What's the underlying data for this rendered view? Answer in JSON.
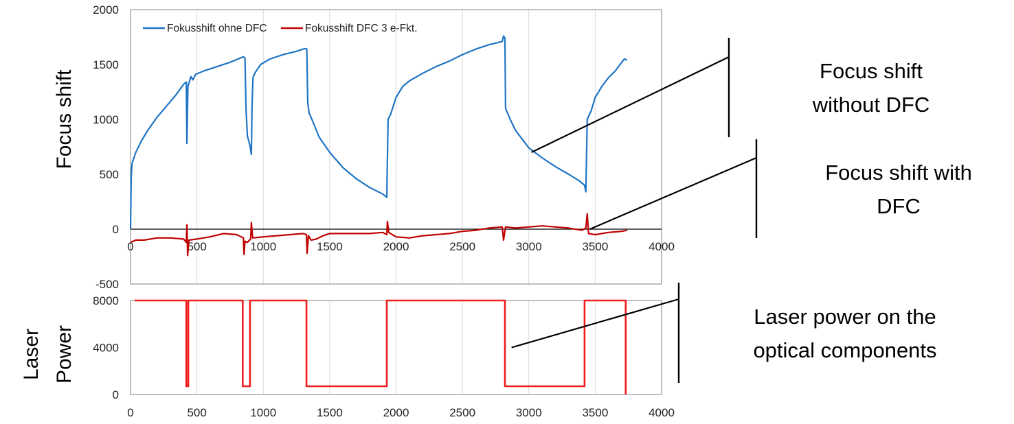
{
  "chart_data": [
    {
      "type": "line",
      "ylabel": "Focus shift",
      "xlim": [
        0,
        4000
      ],
      "ylim": [
        -500,
        2000
      ],
      "x_ticks": [
        0,
        500,
        1000,
        1500,
        2000,
        2500,
        3000,
        3500,
        4000
      ],
      "y_ticks": [
        -500,
        0,
        500,
        1000,
        1500,
        2000
      ],
      "grid": "vertical",
      "legend_position": "top-left",
      "series": [
        {
          "name": "Fokusshift ohne DFC",
          "color": "#1f74c4",
          "points": [
            [
              0,
              0
            ],
            [
              5,
              480
            ],
            [
              12,
              600
            ],
            [
              40,
              700
            ],
            [
              80,
              800
            ],
            [
              130,
              900
            ],
            [
              200,
              1020
            ],
            [
              270,
              1120
            ],
            [
              340,
              1220
            ],
            [
              400,
              1320
            ],
            [
              420,
              1340
            ],
            [
              425,
              780
            ],
            [
              432,
              1300
            ],
            [
              445,
              1350
            ],
            [
              455,
              1390
            ],
            [
              470,
              1360
            ],
            [
              490,
              1410
            ],
            [
              550,
              1440
            ],
            [
              650,
              1480
            ],
            [
              750,
              1520
            ],
            [
              830,
              1560
            ],
            [
              850,
              1570
            ],
            [
              862,
              1560
            ],
            [
              870,
              1100
            ],
            [
              880,
              850
            ],
            [
              900,
              760
            ],
            [
              910,
              680
            ],
            [
              915,
              1100
            ],
            [
              922,
              1380
            ],
            [
              940,
              1430
            ],
            [
              980,
              1500
            ],
            [
              1050,
              1550
            ],
            [
              1150,
              1590
            ],
            [
              1250,
              1620
            ],
            [
              1300,
              1640
            ],
            [
              1320,
              1645
            ],
            [
              1328,
              1640
            ],
            [
              1335,
              1150
            ],
            [
              1345,
              1060
            ],
            [
              1380,
              960
            ],
            [
              1420,
              840
            ],
            [
              1500,
              700
            ],
            [
              1600,
              560
            ],
            [
              1700,
              460
            ],
            [
              1800,
              380
            ],
            [
              1900,
              320
            ],
            [
              1930,
              290
            ],
            [
              1940,
              1000
            ],
            [
              1960,
              1050
            ],
            [
              2000,
              1200
            ],
            [
              2050,
              1300
            ],
            [
              2100,
              1350
            ],
            [
              2200,
              1420
            ],
            [
              2300,
              1480
            ],
            [
              2400,
              1530
            ],
            [
              2500,
              1590
            ],
            [
              2600,
              1640
            ],
            [
              2700,
              1680
            ],
            [
              2800,
              1710
            ],
            [
              2810,
              1760
            ],
            [
              2820,
              1740
            ],
            [
              2825,
              1100
            ],
            [
              2860,
              1000
            ],
            [
              2900,
              900
            ],
            [
              2950,
              820
            ],
            [
              3000,
              740
            ],
            [
              3100,
              650
            ],
            [
              3200,
              570
            ],
            [
              3300,
              500
            ],
            [
              3380,
              440
            ],
            [
              3420,
              400
            ],
            [
              3430,
              340
            ],
            [
              3440,
              1000
            ],
            [
              3470,
              1080
            ],
            [
              3500,
              1200
            ],
            [
              3550,
              1300
            ],
            [
              3600,
              1380
            ],
            [
              3650,
              1440
            ],
            [
              3700,
              1520
            ],
            [
              3720,
              1550
            ],
            [
              3740,
              1540
            ]
          ]
        },
        {
          "name": "Fokusshift DFC 3 e-Fkt.",
          "color": "#c00000",
          "points": [
            [
              0,
              -120
            ],
            [
              40,
              -100
            ],
            [
              100,
              -100
            ],
            [
              200,
              -80
            ],
            [
              300,
              -80
            ],
            [
              400,
              -90
            ],
            [
              420,
              -120
            ],
            [
              425,
              40
            ],
            [
              430,
              -240
            ],
            [
              440,
              -100
            ],
            [
              500,
              -90
            ],
            [
              600,
              -70
            ],
            [
              700,
              -40
            ],
            [
              800,
              -50
            ],
            [
              850,
              -80
            ],
            [
              855,
              -230
            ],
            [
              862,
              -110
            ],
            [
              880,
              -120
            ],
            [
              905,
              -90
            ],
            [
              910,
              60
            ],
            [
              920,
              -80
            ],
            [
              1000,
              -70
            ],
            [
              1100,
              -60
            ],
            [
              1200,
              -50
            ],
            [
              1300,
              -40
            ],
            [
              1325,
              -50
            ],
            [
              1330,
              -220
            ],
            [
              1340,
              -60
            ],
            [
              1360,
              -100
            ],
            [
              1400,
              -90
            ],
            [
              1450,
              -60
            ],
            [
              1500,
              -40
            ],
            [
              1600,
              -40
            ],
            [
              1700,
              -40
            ],
            [
              1800,
              -40
            ],
            [
              1900,
              -30
            ],
            [
              1930,
              -50
            ],
            [
              1935,
              70
            ],
            [
              1945,
              -30
            ],
            [
              2000,
              -70
            ],
            [
              2100,
              -80
            ],
            [
              2200,
              -60
            ],
            [
              2300,
              -50
            ],
            [
              2400,
              -40
            ],
            [
              2500,
              -20
            ],
            [
              2600,
              -10
            ],
            [
              2700,
              10
            ],
            [
              2800,
              20
            ],
            [
              2810,
              -100
            ],
            [
              2825,
              20
            ],
            [
              2900,
              10
            ],
            [
              3000,
              20
            ],
            [
              3100,
              30
            ],
            [
              3200,
              20
            ],
            [
              3300,
              10
            ],
            [
              3400,
              -10
            ],
            [
              3430,
              10
            ],
            [
              3440,
              140
            ],
            [
              3450,
              -40
            ],
            [
              3500,
              -50
            ],
            [
              3600,
              -30
            ],
            [
              3700,
              -20
            ],
            [
              3740,
              -10
            ]
          ]
        }
      ]
    },
    {
      "type": "line",
      "ylabel": "Laser Power",
      "xlim": [
        0,
        4000
      ],
      "ylim": [
        0,
        8000
      ],
      "x_ticks": [
        0,
        500,
        1000,
        1500,
        2000,
        2500,
        3000,
        3500,
        4000
      ],
      "y_ticks": [
        0,
        4000,
        8000
      ],
      "grid": "vertical",
      "series": [
        {
          "color": "#ee1c1c",
          "points": [
            [
              30,
              8000
            ],
            [
              420,
              8000
            ],
            [
              420,
              700
            ],
            [
              435,
              700
            ],
            [
              435,
              8000
            ],
            [
              845,
              8000
            ],
            [
              845,
              700
            ],
            [
              900,
              700
            ],
            [
              900,
              8000
            ],
            [
              1325,
              8000
            ],
            [
              1325,
              700
            ],
            [
              1930,
              700
            ],
            [
              1930,
              8000
            ],
            [
              2820,
              8000
            ],
            [
              2820,
              700
            ],
            [
              3420,
              700
            ],
            [
              3420,
              8000
            ],
            [
              3730,
              8000
            ],
            [
              3730,
              0
            ]
          ]
        }
      ]
    }
  ],
  "annotations": [
    {
      "lines": [
        "Focus shift",
        "without DFC"
      ],
      "pointer": {
        "x": 3020,
        "y": 700,
        "chart": 0
      }
    },
    {
      "lines": [
        "Focus shift with",
        "DFC"
      ],
      "pointer": {
        "x": 3460,
        "y": 0,
        "chart": 0
      }
    },
    {
      "lines": [
        "Laser power on the",
        "optical components"
      ],
      "pointer": {
        "x": 2870,
        "y": 4000,
        "chart": 1
      }
    }
  ]
}
